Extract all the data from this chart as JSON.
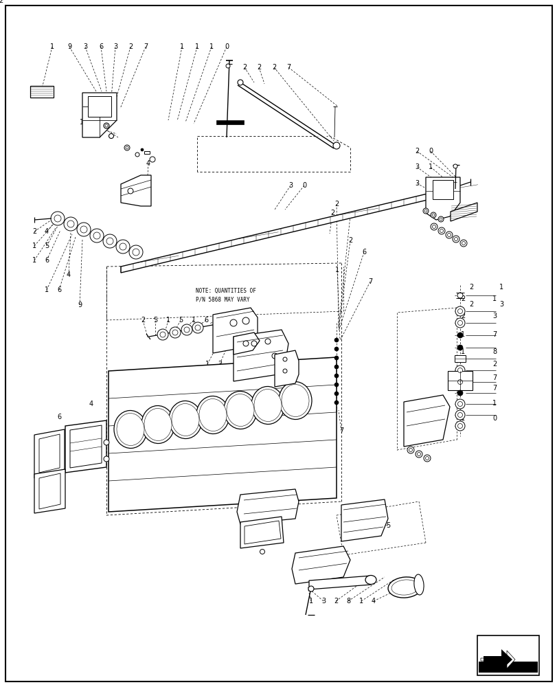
{
  "bg": "#ffffff",
  "lc": "#000000",
  "fig_w": 8.12,
  "fig_h": 10.0,
  "dpi": 100
}
